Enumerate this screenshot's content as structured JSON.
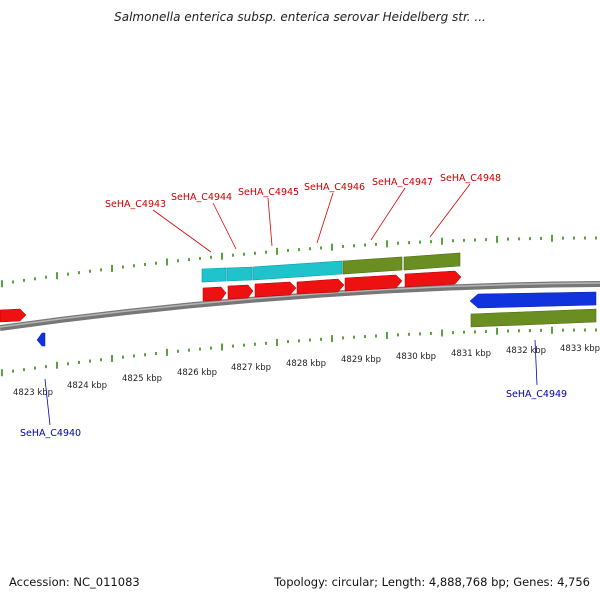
{
  "title": "Salmonella enterica subsp. enterica serovar Heidelberg str. ...",
  "footer": {
    "accession": "Accession: NC_011083",
    "summary": "Topology: circular; Length: 4,888,768 bp; Genes: 4,756"
  },
  "colors": {
    "forward_cds": "#ee1111",
    "reverse_cds": "#1133dd",
    "forward_gc": "#1fc3cc",
    "reverse_gc": "#6b8e23",
    "ticks": "#2e8b12",
    "backbone": "#888888",
    "label_forward": "#cc0000",
    "label_reverse": "#0000aa"
  },
  "kbp_labels": [
    "4823 kbp",
    "4824 kbp",
    "4825 kbp",
    "4826 kbp",
    "4827 kbp",
    "4828 kbp",
    "4829 kbp",
    "4830 kbp",
    "4831 kbp",
    "4832 kbp",
    "4833 kbp"
  ],
  "gene_labels_forward": [
    "SeHA_C4943",
    "SeHA_C4944",
    "SeHA_C4945",
    "SeHA_C4946",
    "SeHA_C4947",
    "SeHA_C4948"
  ],
  "gene_labels_reverse": [
    "SeHA_C4940",
    "SeHA_C4949"
  ]
}
